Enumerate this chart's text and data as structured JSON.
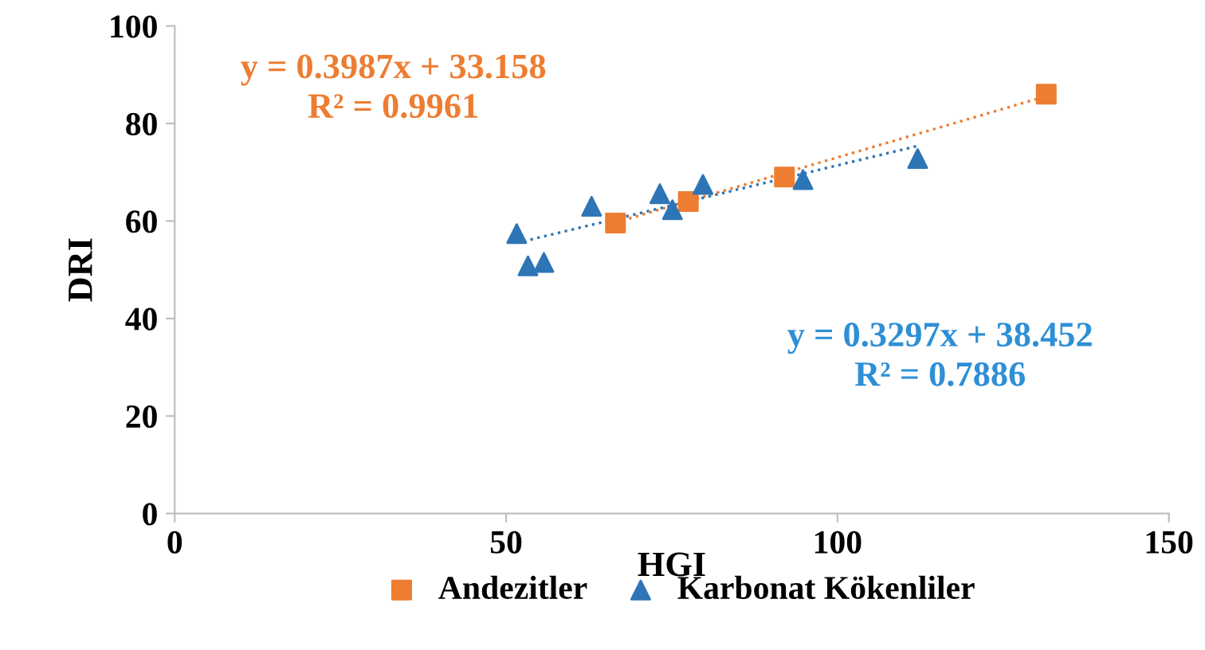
{
  "chart_data": {
    "type": "scatter",
    "xlabel": "HGI",
    "ylabel": "DRI",
    "xlim": [
      0,
      150
    ],
    "ylim": [
      0,
      100
    ],
    "xticks": [
      0,
      50,
      100,
      150
    ],
    "yticks": [
      0,
      20,
      40,
      60,
      80,
      100
    ],
    "grid": false,
    "legend": "bottom",
    "series": [
      {
        "name": "Andezitler",
        "color": "#ed7d31",
        "marker": "square",
        "x": [
          66.5,
          77.5,
          92,
          131.5
        ],
        "values": [
          59.6,
          64,
          69,
          86
        ]
      },
      {
        "name": "Karbonat Kökenliler",
        "color": "#2e75b6",
        "marker": "triangle",
        "x": [
          51.6,
          53.3,
          55.7,
          62.9,
          73.2,
          75.1,
          79.7,
          94.8,
          112.1
        ],
        "values": [
          57.4,
          50.8,
          51.5,
          63,
          65.6,
          62.3,
          67.5,
          68.5,
          72.8
        ]
      },
      {
        "type": "line",
        "color": "#ed7d31",
        "line_style": "dotted",
        "marker": "none",
        "x": [
          66.5,
          131.5
        ],
        "values": [
          59.7,
          85.6
        ]
      },
      {
        "type": "line",
        "color": "#2e75b6",
        "line_style": "dotted",
        "marker": "none",
        "x": [
          51.6,
          112.1
        ],
        "values": [
          55.5,
          75.4
        ]
      }
    ],
    "annotations": [
      "y = 0.3987x + 33.158\nR² = 0.9961",
      "y = 0.3297x + 38.452\nR² = 0.7886"
    ]
  }
}
